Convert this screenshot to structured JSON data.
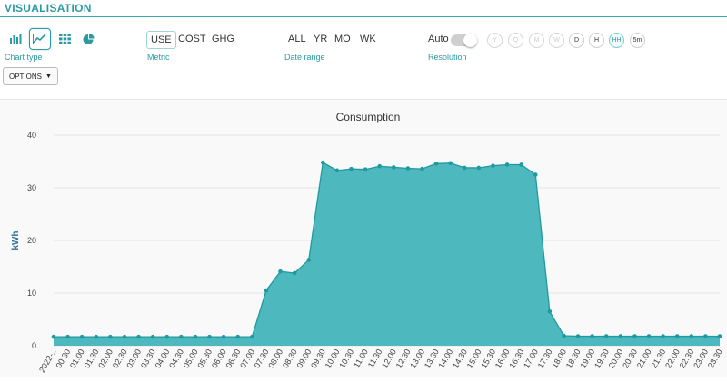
{
  "header": {
    "title": "VISUALISATION"
  },
  "chart_type": {
    "label": "Chart type",
    "icons": [
      "bar-chart-icon",
      "line-chart-icon",
      "table-grid-icon",
      "pie-chart-icon"
    ],
    "selected": "line-chart-icon"
  },
  "metric": {
    "label": "Metric",
    "options": [
      "USE",
      "COST",
      "GHG"
    ],
    "selected": "USE"
  },
  "date_range": {
    "label": "Date range",
    "options": [
      "ALL",
      "YR",
      "MO",
      "WK"
    ]
  },
  "resolution": {
    "label": "Resolution",
    "auto_label": "Auto",
    "options": [
      "Y",
      "Q",
      "M",
      "W",
      "D",
      "H",
      "HH",
      "5m"
    ],
    "enabled": [
      "D",
      "H",
      "HH",
      "5m"
    ],
    "selected": "HH"
  },
  "options_button": {
    "label": "OPTIONS"
  },
  "colors": {
    "accent": "#2a9aa3",
    "fill": "#4db8be",
    "line": "#1f9aa0"
  },
  "chart_data": {
    "type": "area",
    "title": "Consumption",
    "ylabel": "kWh",
    "ylim": [
      0,
      40
    ],
    "yticks": [
      0,
      10,
      20,
      30,
      40
    ],
    "x": [
      "2022-..",
      "00:30",
      "01:00",
      "01:30",
      "02:00",
      "02:30",
      "03:00",
      "03:30",
      "04:00",
      "04:30",
      "05:00",
      "05:30",
      "06:00",
      "06:30",
      "07:00",
      "07:30",
      "08:00",
      "08:30",
      "09:00",
      "09:30",
      "10:00",
      "10:30",
      "11:00",
      "11:30",
      "12:00",
      "12:30",
      "13:00",
      "13:30",
      "14:00",
      "14:30",
      "15:00",
      "15:30",
      "16:00",
      "16:30",
      "17:00",
      "17:30",
      "18:00",
      "18:30",
      "19:00",
      "19:30",
      "20:00",
      "20:30",
      "21:00",
      "21:30",
      "22:00",
      "22:30",
      "23:00",
      "23:30"
    ],
    "x_labels": [
      "2022-..",
      "00:30",
      "01:00",
      "01:30",
      "02:00",
      "02:30",
      "03:00",
      "03:30",
      "04:00",
      "04:30",
      "05:00",
      "05:30",
      "06:00",
      "06:30",
      "07:00",
      "07:30",
      "08:00",
      "08:30",
      "09:00",
      "09:30",
      "10:00",
      "10:30",
      "11:00",
      "11:30",
      "12:00",
      "12:30",
      "13:00",
      "13:30",
      "14:00",
      "14:30",
      "15:00",
      "15:30",
      "16:00",
      "16:30",
      "17:00",
      "17:30",
      "18:00",
      "18:30",
      "19:00",
      "19:30",
      "20:00",
      "20:30",
      "21:00",
      "21:30",
      "22:00",
      "22:30",
      "23:00",
      "23:30"
    ],
    "values": [
      1.7,
      1.7,
      1.7,
      1.7,
      1.7,
      1.7,
      1.7,
      1.7,
      1.7,
      1.7,
      1.7,
      1.7,
      1.7,
      1.7,
      1.7,
      10.5,
      14.1,
      13.8,
      16.3,
      34.8,
      33.3,
      33.6,
      33.5,
      34.1,
      33.9,
      33.7,
      33.6,
      34.6,
      34.7,
      33.8,
      33.8,
      34.2,
      34.4,
      34.4,
      32.5,
      6.5,
      1.9,
      1.8,
      1.8,
      1.8,
      1.8,
      1.8,
      1.8,
      1.8,
      1.8,
      1.8,
      1.8,
      1.8
    ]
  }
}
